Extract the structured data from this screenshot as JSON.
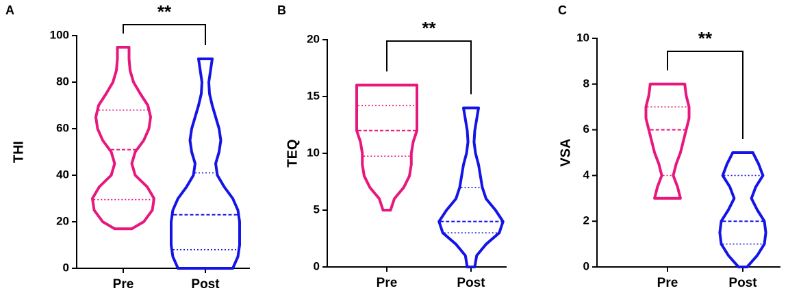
{
  "chart_data": [
    {
      "type": "violin",
      "panel": "A",
      "ylabel": "THI",
      "significance": "**",
      "categories": [
        "Pre",
        "Post"
      ],
      "ylim": [
        0,
        100
      ],
      "yticks": [
        0,
        20,
        40,
        60,
        80,
        100
      ],
      "series": [
        {
          "color": "#e8177d",
          "min": 17,
          "max": 95,
          "median": 51,
          "q1": 29.5,
          "q3": 68,
          "density_y": [
            17,
            20,
            25,
            30,
            35,
            40,
            45,
            50,
            55,
            60,
            65,
            70,
            75,
            80,
            85,
            90,
            95
          ],
          "density": [
            0.25,
            0.6,
            0.85,
            0.9,
            0.7,
            0.35,
            0.25,
            0.35,
            0.6,
            0.75,
            0.8,
            0.72,
            0.5,
            0.3,
            0.2,
            0.17,
            0.17
          ]
        },
        {
          "color": "#1414e6",
          "min": 0,
          "max": 90,
          "median": 23,
          "q1": 8,
          "q3": 41,
          "density_y": [
            0,
            5,
            10,
            15,
            20,
            25,
            30,
            35,
            40,
            45,
            50,
            55,
            60,
            65,
            70,
            75,
            80,
            85,
            90
          ],
          "density": [
            0.8,
            0.95,
            1.0,
            1.0,
            1.0,
            0.95,
            0.8,
            0.55,
            0.35,
            0.3,
            0.4,
            0.45,
            0.4,
            0.3,
            0.2,
            0.12,
            0.1,
            0.15,
            0.2
          ]
        }
      ]
    },
    {
      "type": "violin",
      "panel": "B",
      "ylabel": "TEQ",
      "significance": "**",
      "categories": [
        "Pre",
        "Post"
      ],
      "ylim": [
        0,
        20
      ],
      "yticks": [
        0,
        5,
        10,
        15,
        20
      ],
      "series": [
        {
          "color": "#e8177d",
          "min": 5,
          "max": 16,
          "median": 12,
          "q1": 9.75,
          "q3": 14.2,
          "density_y": [
            5,
            6,
            7,
            8,
            9,
            10,
            11,
            12,
            13,
            14,
            15,
            16
          ],
          "density": [
            0.1,
            0.2,
            0.45,
            0.6,
            0.65,
            0.65,
            0.7,
            0.8,
            0.8,
            0.8,
            0.8,
            0.8
          ]
        },
        {
          "color": "#1414e6",
          "min": 0,
          "max": 14,
          "median": 4,
          "q1": 3,
          "q3": 7,
          "density_y": [
            0,
            1,
            2,
            3,
            4,
            5,
            6,
            7,
            8,
            9,
            10,
            11,
            12,
            13,
            14
          ],
          "density": [
            0.1,
            0.15,
            0.4,
            0.75,
            0.85,
            0.65,
            0.4,
            0.3,
            0.25,
            0.2,
            0.12,
            0.08,
            0.1,
            0.15,
            0.2
          ]
        }
      ]
    },
    {
      "type": "violin",
      "panel": "C",
      "ylabel": "VSA",
      "significance": "**",
      "categories": [
        "Pre",
        "Post"
      ],
      "ylim": [
        0,
        10
      ],
      "yticks": [
        0,
        2,
        4,
        6,
        8,
        10
      ],
      "series": [
        {
          "color": "#e8177d",
          "min": 3,
          "max": 8,
          "median": 6,
          "q1": 4,
          "q3": 7,
          "density_y": [
            3,
            3.5,
            4,
            4.5,
            5,
            5.5,
            6,
            6.5,
            7,
            7.5,
            8
          ],
          "density": [
            0.45,
            0.35,
            0.2,
            0.3,
            0.45,
            0.55,
            0.65,
            0.75,
            0.75,
            0.65,
            0.6
          ]
        },
        {
          "color": "#1414e6",
          "min": 0,
          "max": 5,
          "median": 2,
          "q1": 1,
          "q3": 4,
          "density_y": [
            0,
            0.5,
            1,
            1.5,
            2,
            2.5,
            3,
            3.5,
            4,
            4.5,
            5
          ],
          "density": [
            0.15,
            0.5,
            0.75,
            0.8,
            0.75,
            0.5,
            0.3,
            0.45,
            0.7,
            0.55,
            0.35
          ]
        }
      ]
    }
  ]
}
